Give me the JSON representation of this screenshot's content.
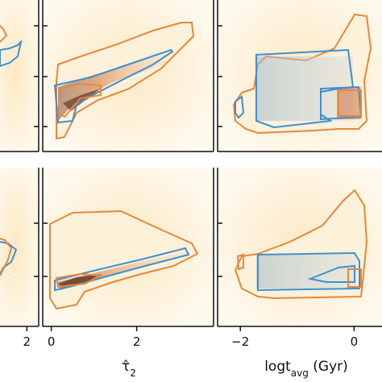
{
  "chart_data": [
    {
      "type": "scatter",
      "panel": "left-top",
      "xlabel": "",
      "ylabel": "",
      "xlim": [
        -0.5,
        2.5
      ],
      "ylim": [
        0,
        10
      ],
      "x_ticks": [],
      "series": []
    },
    {
      "type": "scatter",
      "panel": "middle-top",
      "xlabel": "",
      "ylabel": "",
      "xlim": [
        -0.2,
        3.8
      ],
      "ylim": [
        0,
        10
      ],
      "x_ticks": [],
      "series": []
    },
    {
      "type": "scatter",
      "panel": "right-top",
      "xlabel": "",
      "ylabel": "",
      "xlim": [
        -2.4,
        1.0
      ],
      "ylim": [
        0,
        10
      ],
      "x_ticks": [],
      "series": []
    },
    {
      "type": "scatter",
      "panel": "left-bottom",
      "xlabel": "",
      "ylabel": "",
      "xlim": [
        -0.5,
        2.5
      ],
      "ylim": [
        0,
        10
      ],
      "x_ticks": [
        "2"
      ],
      "x_tick_values": [
        2
      ],
      "series": []
    },
    {
      "type": "scatter",
      "panel": "middle-bottom",
      "xlabel": "τ̂₂",
      "xlabel_main": "τ̂",
      "xlabel_sub": "2",
      "ylabel": "",
      "xlim": [
        -0.2,
        3.8
      ],
      "ylim": [
        0,
        10
      ],
      "x_ticks": [
        "0",
        "2"
      ],
      "x_tick_values": [
        0,
        2
      ],
      "series": []
    },
    {
      "type": "scatter",
      "panel": "right-bottom",
      "xlabel": "logt_avg (Gyr)",
      "xlabel_main": "logt",
      "xlabel_sub": "avg",
      "xlabel_tail": " (Gyr)",
      "ylabel": "",
      "xlim": [
        -2.4,
        1.0
      ],
      "ylim": [
        0,
        10
      ],
      "x_ticks": [
        "−2",
        "0"
      ],
      "x_tick_values": [
        -2,
        0
      ],
      "series": []
    }
  ],
  "colors": {
    "orange_contour": "#e8873a",
    "blue_contour": "#3d8fd0",
    "orange_density": "#c2571a",
    "blue_density": "#5d8faa",
    "background_density": "#fdf3dc"
  }
}
